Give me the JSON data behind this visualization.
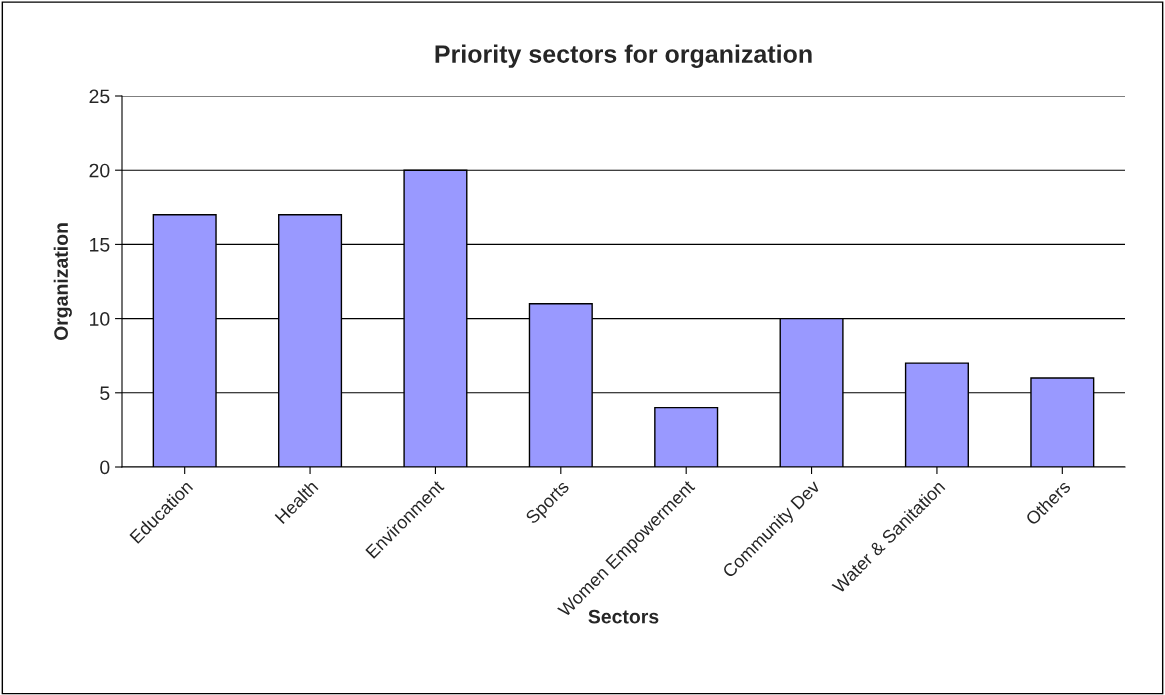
{
  "chart_data": {
    "type": "bar",
    "title": "Priority sectors for organization",
    "xlabel": "Sectors",
    "ylabel": "Organization",
    "categories": [
      "Education",
      "Health",
      "Environment",
      "Sports",
      "Women Empowerment",
      "Community Dev",
      "Water & Sanitation",
      "Others"
    ],
    "values": [
      17,
      17,
      20,
      11,
      4,
      10,
      7,
      6
    ],
    "color": "#9999ff",
    "ylim": [
      0,
      25
    ],
    "yticks": [
      0,
      5,
      10,
      15,
      20,
      25
    ],
    "grid": "y",
    "legend": false
  }
}
